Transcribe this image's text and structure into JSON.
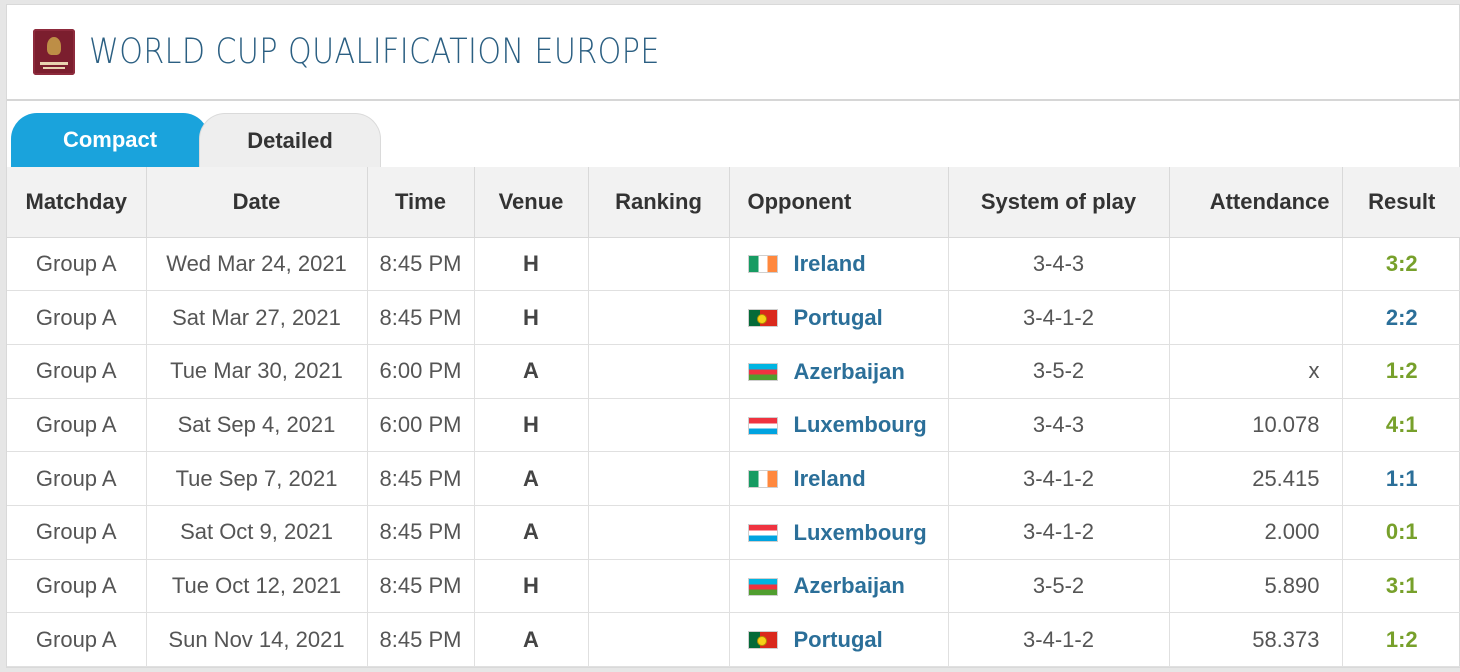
{
  "header": {
    "title": "WORLD CUP QUALIFICATION EUROPE",
    "logo_icon": "fifa-world-cup-qualifiers-logo"
  },
  "tabs": [
    {
      "label": "Compact",
      "active": true
    },
    {
      "label": "Detailed",
      "active": false
    }
  ],
  "table": {
    "columns": [
      "Matchday",
      "Date",
      "Time",
      "Venue",
      "Ranking",
      "Opponent",
      "System of play",
      "Attendance",
      "Result"
    ],
    "rows": [
      {
        "matchday": "Group A",
        "date": "Wed Mar 24, 2021",
        "time": "8:45 PM",
        "venue": "H",
        "ranking": "",
        "flag": "ireland-flag-icon",
        "opponent": "Ireland",
        "system": "3-4-3",
        "attendance": "",
        "result": "3:2",
        "result_type": "win"
      },
      {
        "matchday": "Group A",
        "date": "Sat Mar 27, 2021",
        "time": "8:45 PM",
        "venue": "H",
        "ranking": "",
        "flag": "portugal-flag-icon",
        "opponent": "Portugal",
        "system": "3-4-1-2",
        "attendance": "",
        "result": "2:2",
        "result_type": "draw"
      },
      {
        "matchday": "Group A",
        "date": "Tue Mar 30, 2021",
        "time": "6:00 PM",
        "venue": "A",
        "ranking": "",
        "flag": "azerbaijan-flag-icon",
        "opponent": "Azerbaijan",
        "system": "3-5-2",
        "attendance": "x",
        "result": "1:2",
        "result_type": "win"
      },
      {
        "matchday": "Group A",
        "date": "Sat Sep 4, 2021",
        "time": "6:00 PM",
        "venue": "H",
        "ranking": "",
        "flag": "luxembourg-flag-icon",
        "opponent": "Luxembourg",
        "system": "3-4-3",
        "attendance": "10.078",
        "result": "4:1",
        "result_type": "win"
      },
      {
        "matchday": "Group A",
        "date": "Tue Sep 7, 2021",
        "time": "8:45 PM",
        "venue": "A",
        "ranking": "",
        "flag": "ireland-flag-icon",
        "opponent": "Ireland",
        "system": "3-4-1-2",
        "attendance": "25.415",
        "result": "1:1",
        "result_type": "draw"
      },
      {
        "matchday": "Group A",
        "date": "Sat Oct 9, 2021",
        "time": "8:45 PM",
        "venue": "A",
        "ranking": "",
        "flag": "luxembourg-flag-icon",
        "opponent": "Luxembourg",
        "system": "3-4-1-2",
        "attendance": "2.000",
        "result": "0:1",
        "result_type": "win"
      },
      {
        "matchday": "Group A",
        "date": "Tue Oct 12, 2021",
        "time": "8:45 PM",
        "venue": "H",
        "ranking": "",
        "flag": "azerbaijan-flag-icon",
        "opponent": "Azerbaijan",
        "system": "3-5-2",
        "attendance": "5.890",
        "result": "3:1",
        "result_type": "win"
      },
      {
        "matchday": "Group A",
        "date": "Sun Nov 14, 2021",
        "time": "8:45 PM",
        "venue": "A",
        "ranking": "",
        "flag": "portugal-flag-icon",
        "opponent": "Portugal",
        "system": "3-4-1-2",
        "attendance": "58.373",
        "result": "1:2",
        "result_type": "win"
      }
    ]
  },
  "colors": {
    "title": "#2b5f82",
    "tab_active": "#1aa3dc",
    "link": "#2b6f99",
    "result_win": "#77a02b",
    "result_draw": "#2b6f99"
  }
}
